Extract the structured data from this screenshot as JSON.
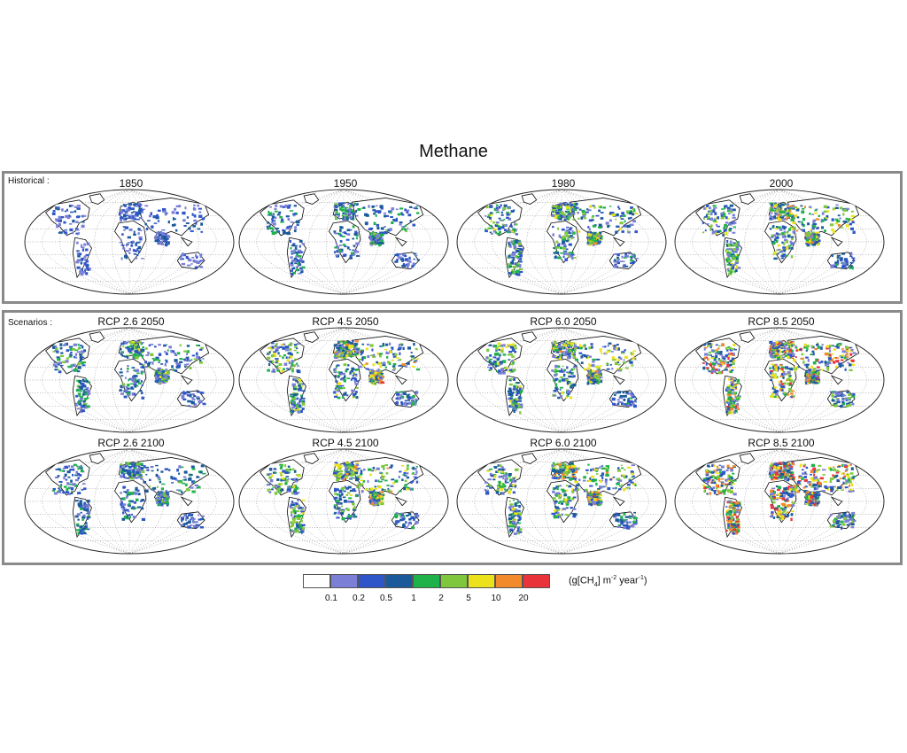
{
  "figure": {
    "title": "Methane",
    "historical_label": "Historical :",
    "scenarios_label": "Scenarios :"
  },
  "maps": {
    "historical": [
      "1850",
      "1950",
      "1980",
      "2000"
    ],
    "scenarios_2050": [
      "RCP 2.6 2050",
      "RCP 4.5 2050",
      "RCP 6.0 2050",
      "RCP 8.5 2050"
    ],
    "scenarios_2100": [
      "RCP 2.6 2100",
      "RCP 4.5 2100",
      "RCP 6.0 2100",
      "RCP 8.5 2100"
    ]
  },
  "legend": {
    "colors": [
      "#ffffff",
      "#7b7fd6",
      "#2f56c8",
      "#1a5a9a",
      "#1fb24a",
      "#7fc83e",
      "#ece21c",
      "#f28a2c",
      "#e8333a"
    ],
    "ticks": [
      "0.1",
      "0.2",
      "0.5",
      "1",
      "2",
      "5",
      "10",
      "20"
    ],
    "unit_prefix": "(g[CH",
    "unit_sub": "4",
    "unit_mid": "] m",
    "unit_sup1": "-2",
    "unit_mid2": " year",
    "unit_sup2": "-1",
    "unit_suffix": ")"
  }
}
